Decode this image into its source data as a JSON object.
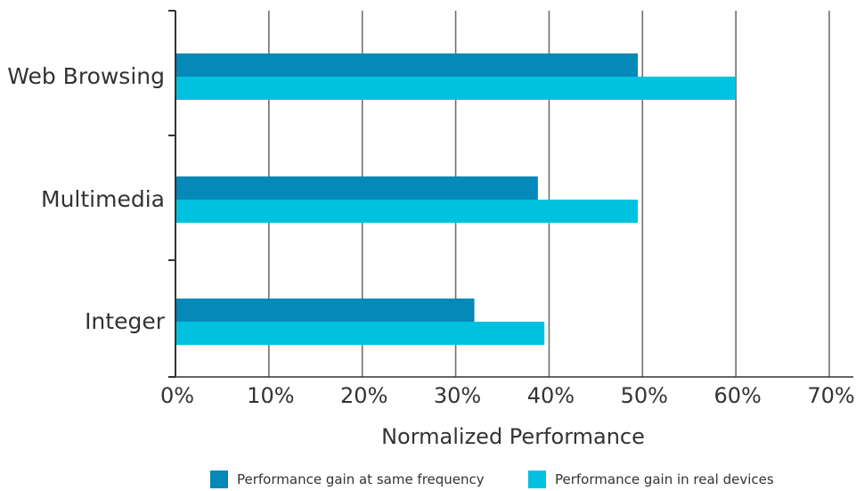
{
  "chart_data": {
    "type": "bar",
    "orientation": "horizontal",
    "categories": [
      "Web Browsing",
      "Multimedia",
      "Integer"
    ],
    "series": [
      {
        "name": "Performance gain at same frequency",
        "values": [
          49.5,
          38.8,
          32
        ],
        "color": "#0489b8"
      },
      {
        "name": "Performance gain in real devices",
        "values": [
          60,
          49.5,
          39.5
        ],
        "color": "#00c2e0"
      }
    ],
    "xlabel": "Normalized Performance",
    "ylabel": "",
    "xlim": [
      0,
      70
    ],
    "xticks": [
      "0%",
      "10%",
      "20%",
      "30%",
      "40%",
      "50%",
      "60%",
      "70%"
    ],
    "grid": true,
    "legend_position": "bottom"
  }
}
